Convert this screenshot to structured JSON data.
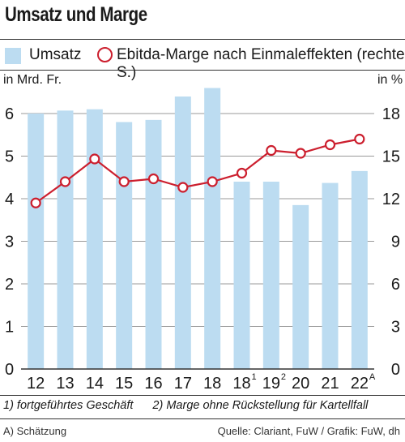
{
  "title": "Umsatz und Marge",
  "legend": {
    "bars": "Umsatz",
    "line": "Ebitda-Marge nach Einmaleffekten (rechte S.)"
  },
  "left_unit": "in Mrd. Fr.",
  "right_unit": "in %",
  "notes": [
    "1) fortgeführtes Geschäft",
    "2) Marge ohne Rückstellung für Kartellfall"
  ],
  "footer_left": "A) Schätzung",
  "footer_right": "Quelle: Clariant, FuW / Grafik: FuW, dh",
  "colors": {
    "bar": "#bcdcf1",
    "line": "#cc1f2e",
    "grid": "#9a9a9a"
  },
  "chart_data": {
    "type": "bar",
    "categories": [
      "12",
      "13",
      "14",
      "15",
      "16",
      "17",
      "18",
      "18",
      "19",
      "20",
      "21",
      "22"
    ],
    "category_superscripts": [
      "",
      "",
      "",
      "",
      "",
      "",
      "",
      "1",
      "2",
      "",
      "",
      "A"
    ],
    "series": [
      {
        "name": "Umsatz",
        "type": "bar",
        "axis": "left",
        "values": [
          6.0,
          6.07,
          6.1,
          5.8,
          5.85,
          6.4,
          6.6,
          4.4,
          4.4,
          3.85,
          4.37,
          4.65
        ]
      },
      {
        "name": "Ebitda-Marge nach Einmaleffekten (rechte S.)",
        "type": "line",
        "axis": "right",
        "values": [
          11.7,
          13.2,
          14.8,
          13.2,
          13.4,
          12.8,
          13.2,
          13.8,
          15.4,
          15.2,
          15.8,
          16.2
        ]
      }
    ],
    "y_left": {
      "ticks": [
        0,
        1,
        2,
        3,
        4,
        5,
        6
      ],
      "ylim": [
        0,
        7
      ]
    },
    "y_right": {
      "ticks": [
        0,
        3,
        6,
        9,
        12,
        15,
        18
      ],
      "ylim": [
        0,
        21
      ]
    },
    "grid": true
  }
}
